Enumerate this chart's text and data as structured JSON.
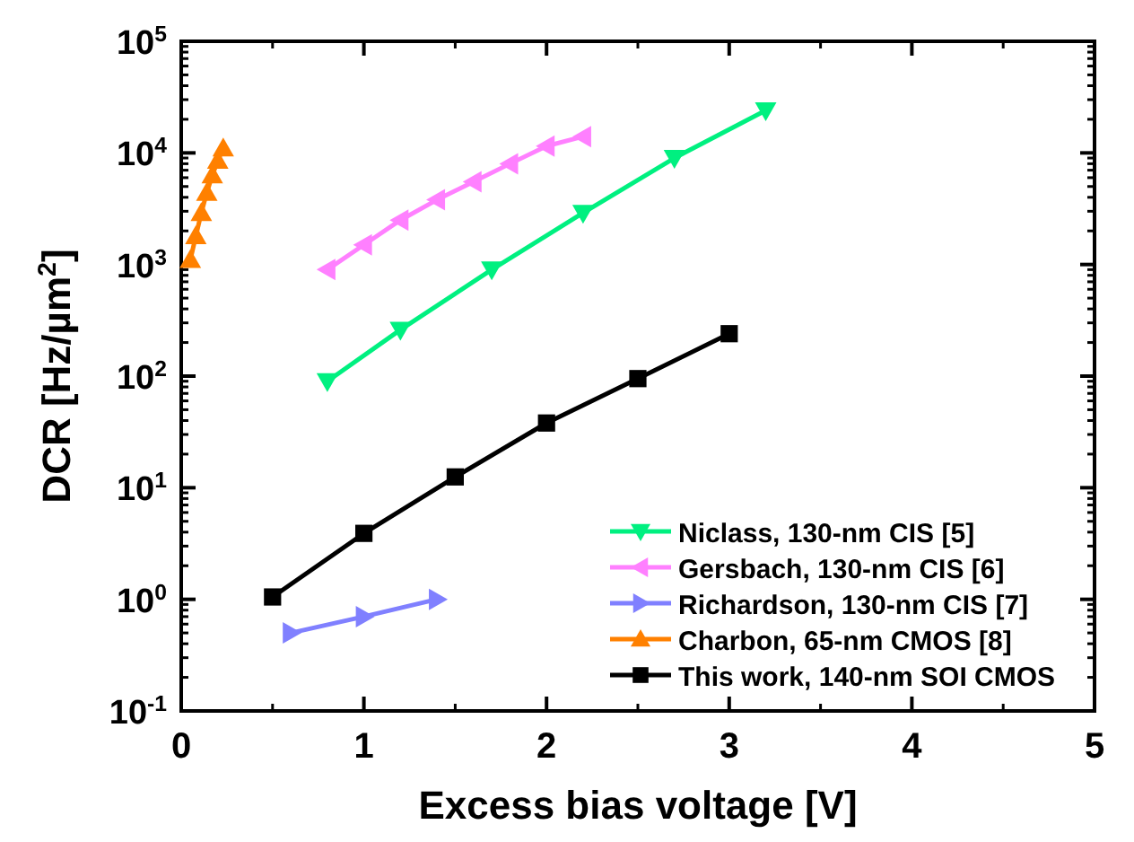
{
  "chart_data": {
    "type": "line",
    "xlabel": "Excess bias voltage [V]",
    "ylabel": "DCR [Hz/µm$^{2}$]",
    "log": "y",
    "xlim": [
      0,
      5
    ],
    "ylim": [
      0.1,
      100000
    ],
    "xticks": [
      0,
      1,
      2,
      3,
      4,
      5
    ],
    "yticks": [
      {
        "value": 0.1,
        "label": "10$^{-1}$"
      },
      {
        "value": 1,
        "label": "10$^{0}$"
      },
      {
        "value": 10,
        "label": "10$^{1}$"
      },
      {
        "value": 100,
        "label": "10$^{2}$"
      },
      {
        "value": 1000,
        "label": "10$^{3}$"
      },
      {
        "value": 10000,
        "label": "10$^{4}$"
      },
      {
        "value": 100000,
        "label": "10$^{5}$"
      }
    ],
    "grid": false,
    "legend": "bottom right",
    "line_style": "solid",
    "series": [
      {
        "name": "Niclass, 130-nm CIS [5]",
        "color": "#00f080",
        "marker": "triangle-down",
        "x": [
          0.8,
          1.2,
          1.7,
          2.2,
          2.7,
          3.2
        ],
        "values": [
          90,
          260,
          900,
          2900,
          9000,
          24000
        ]
      },
      {
        "name": "Gersbach, 130-nm CIS [6]",
        "color": "#ff80ff",
        "marker": "triangle-left",
        "x": [
          0.8,
          1.0,
          1.2,
          1.4,
          1.6,
          1.8,
          2.0,
          2.2
        ],
        "values": [
          900,
          1500,
          2500,
          3800,
          5500,
          8000,
          11500,
          14000
        ]
      },
      {
        "name": "Richardson, 130-nm CIS [7]",
        "color": "#8080ff",
        "marker": "triangle-right",
        "x": [
          0.6,
          1.0,
          1.4
        ],
        "values": [
          0.5,
          0.7,
          1.0
        ]
      },
      {
        "name": "Charbon, 65-nm CMOS [8]",
        "color": "#ff8000",
        "marker": "triangle",
        "x": [
          0.05,
          0.08,
          0.11,
          0.14,
          0.17,
          0.2,
          0.23
        ],
        "values": [
          1100,
          1800,
          2900,
          4400,
          6300,
          8500,
          11000
        ]
      },
      {
        "name": "This work, 140-nm SOI CMOS",
        "color": "#000000",
        "marker": "square",
        "x": [
          0.5,
          1,
          1.5,
          2,
          2.5,
          3
        ],
        "values": [
          1.05,
          3.9,
          12.5,
          38,
          95,
          240
        ]
      }
    ]
  }
}
